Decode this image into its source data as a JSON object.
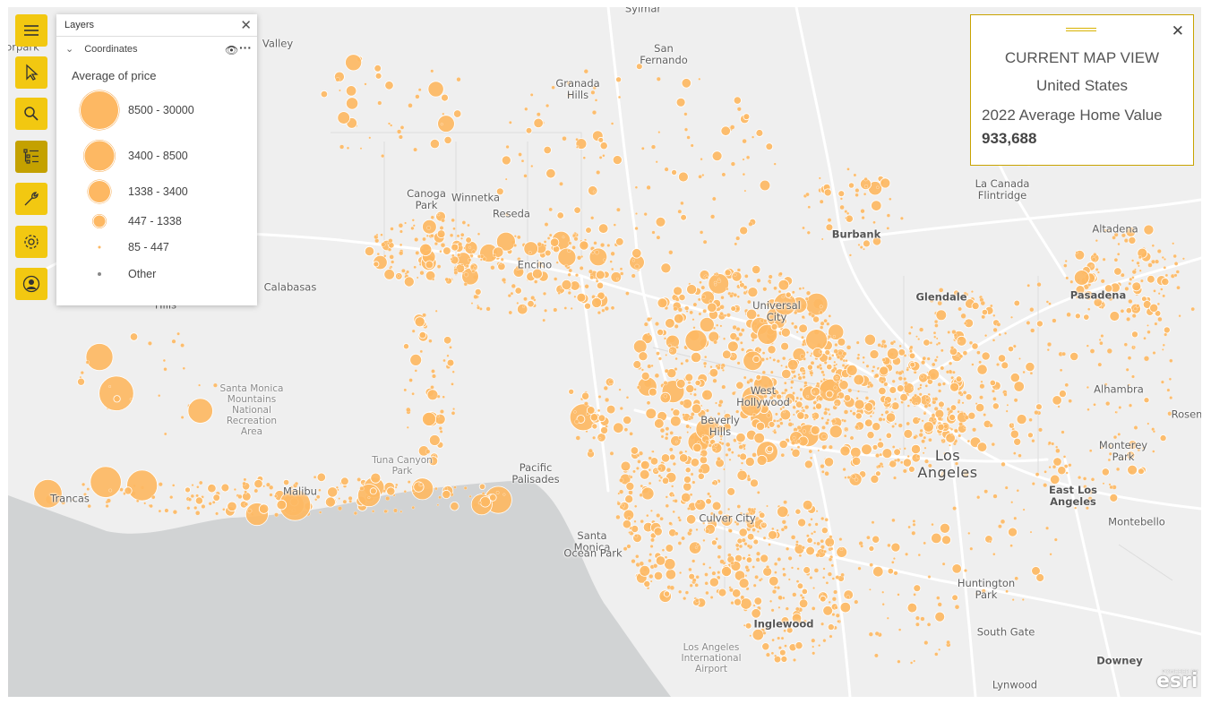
{
  "toolbar": [
    {
      "name": "menu-button",
      "icon": "hamburger-icon",
      "active": false
    },
    {
      "name": "select-button",
      "icon": "cursor-icon",
      "active": false
    },
    {
      "name": "search-button",
      "icon": "search-icon",
      "active": false
    },
    {
      "name": "layers-button",
      "icon": "layers-list-icon",
      "active": true
    },
    {
      "name": "tools-button",
      "icon": "wrench-icon",
      "active": false
    },
    {
      "name": "settings-button",
      "icon": "gear-icon",
      "active": false
    },
    {
      "name": "account-button",
      "icon": "user-icon",
      "active": false
    }
  ],
  "layers_panel": {
    "title": "Layers",
    "layer_name": "Coordinates",
    "legend_title": "Average of price",
    "legend": [
      {
        "label": "8500 - 30000"
      },
      {
        "label": "3400 - 8500"
      },
      {
        "label": "1338 - 3400"
      },
      {
        "label": "447 - 1338"
      },
      {
        "label": "85 - 447"
      },
      {
        "label": "Other"
      }
    ]
  },
  "info_card": {
    "heading": "CURRENT MAP VIEW",
    "region": "United States",
    "metric_label": "2022 Average Home Value",
    "metric_value": "933,688"
  },
  "map": {
    "symbol_color": "#fdb863",
    "places": [
      {
        "text": "Sylmar",
        "big": false,
        "bold": false
      },
      {
        "text": "San\nFernando",
        "big": false,
        "bold": false
      },
      {
        "text": "Granada\nHills",
        "big": false,
        "bold": false
      },
      {
        "text": "Canoga\nPark",
        "big": false,
        "bold": false
      },
      {
        "text": "Winnetka",
        "big": false,
        "bold": false
      },
      {
        "text": "Reseda",
        "big": false,
        "bold": false
      },
      {
        "text": "Encino",
        "big": false,
        "bold": false
      },
      {
        "text": "Calabasas",
        "big": false,
        "bold": false
      },
      {
        "text": "Hills",
        "big": false,
        "bold": false
      },
      {
        "text": "Valley",
        "big": false,
        "bold": false
      },
      {
        "text": "orpark",
        "big": false,
        "bold": false
      },
      {
        "text": "Santa Monica\nMountains\nNational\nRecreation\nArea",
        "big": false,
        "bold": false
      },
      {
        "text": "Tuna Canyon\nPark",
        "big": false,
        "bold": false
      },
      {
        "text": "Trancas",
        "big": false,
        "bold": false
      },
      {
        "text": "Malibu",
        "big": false,
        "bold": false
      },
      {
        "text": "Pacific\nPalisades",
        "big": false,
        "bold": false
      },
      {
        "text": "Santa\nMonica",
        "big": false,
        "bold": false
      },
      {
        "text": "Ocean Park",
        "big": false,
        "bold": false
      },
      {
        "text": "Universal\nCity",
        "big": false,
        "bold": false
      },
      {
        "text": "West\nHollywood",
        "big": false,
        "bold": false
      },
      {
        "text": "Beverly\nHills",
        "big": false,
        "bold": false
      },
      {
        "text": "Culver City",
        "big": false,
        "bold": false
      },
      {
        "text": "Burbank",
        "big": false,
        "bold": true
      },
      {
        "text": "Glendale",
        "big": false,
        "bold": true
      },
      {
        "text": "La Canada\nFlintridge",
        "big": false,
        "bold": false
      },
      {
        "text": "Altadena",
        "big": false,
        "bold": false
      },
      {
        "text": "Pasadena",
        "big": false,
        "bold": true
      },
      {
        "text": "Alhambra",
        "big": false,
        "bold": false
      },
      {
        "text": "Rosem",
        "big": false,
        "bold": false
      },
      {
        "text": "Monterey\nPark",
        "big": false,
        "bold": false
      },
      {
        "text": "Los\nAngeles",
        "big": true,
        "bold": false
      },
      {
        "text": "East Los\nAngeles",
        "big": false,
        "bold": true
      },
      {
        "text": "Montebello",
        "big": false,
        "bold": false
      },
      {
        "text": "Huntington\nPark",
        "big": false,
        "bold": false
      },
      {
        "text": "South Gate",
        "big": false,
        "bold": false
      },
      {
        "text": "Inglewood",
        "big": false,
        "bold": true
      },
      {
        "text": "Los Angeles\nInternational\nAirport",
        "big": false,
        "bold": false
      },
      {
        "text": "Downey",
        "big": false,
        "bold": true
      },
      {
        "text": "Lynwood",
        "big": false,
        "bold": false
      }
    ],
    "attribution": "esri",
    "attribution_small": "POWERED BY"
  }
}
